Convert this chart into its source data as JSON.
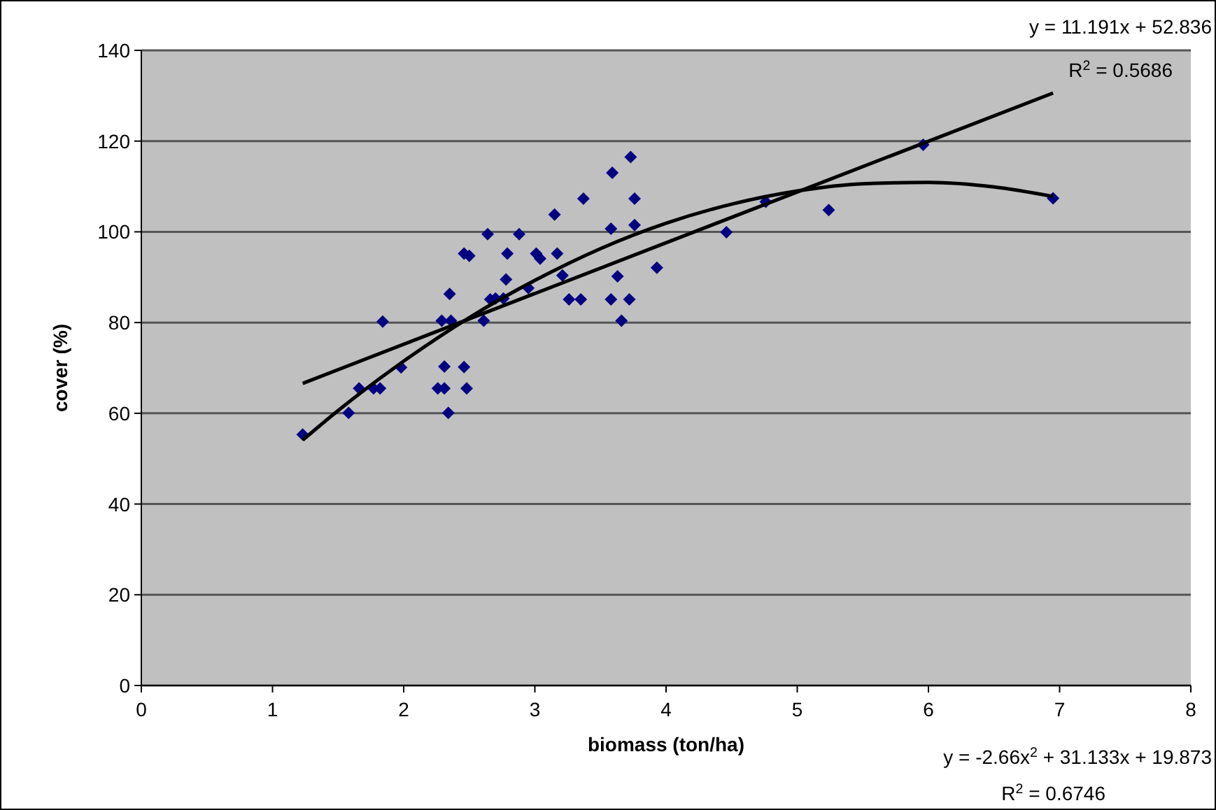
{
  "chart_data": {
    "type": "scatter",
    "xlabel": "biomass (ton/ha)",
    "ylabel": "cover (%)",
    "xlim": [
      0,
      8
    ],
    "ylim": [
      0,
      140
    ],
    "xticks": [
      0,
      1,
      2,
      3,
      4,
      5,
      6,
      7,
      8
    ],
    "yticks": [
      0,
      20,
      40,
      60,
      80,
      100,
      120,
      140
    ],
    "grid": "y",
    "marker": "diamond",
    "annotations": [
      "y = 11.191x + 52.836",
      "R$^{2}$ = 0.5686",
      "y = -2.66x$^{2}$ + 31.133x + 19.873",
      "R$^{2}$ = 0.6746"
    ],
    "series": [
      {
        "color": "#000080",
        "x": [
          1.23,
          1.58,
          1.66,
          1.77,
          1.82,
          1.84,
          1.98,
          2.26,
          2.31,
          2.29,
          2.31,
          2.34,
          2.35,
          2.36,
          2.46,
          2.48,
          2.46,
          2.5,
          2.61,
          2.64,
          2.66,
          2.7,
          2.76,
          2.78,
          2.79,
          2.88,
          2.95,
          3.01,
          3.04,
          3.15,
          3.17,
          3.21,
          3.26,
          3.35,
          3.37,
          3.58,
          3.58,
          3.59,
          3.63,
          3.66,
          3.72,
          3.73,
          3.76,
          3.76,
          3.93,
          4.46,
          4.76,
          5.24,
          5.96,
          6.95
        ],
        "values": [
          55.3,
          60.1,
          65.5,
          65.5,
          65.5,
          80.2,
          70.1,
          65.5,
          65.5,
          80.4,
          70.3,
          60.1,
          86.3,
          80.4,
          70.2,
          65.5,
          95.2,
          94.7,
          80.4,
          99.5,
          85.1,
          85.3,
          85.3,
          89.5,
          95.2,
          99.5,
          87.6,
          95.2,
          94.1,
          103.8,
          95.2,
          90.4,
          85.1,
          85.1,
          107.3,
          100.7,
          85.1,
          113,
          90.2,
          80.4,
          85.1,
          116.5,
          107.3,
          101.5,
          92.1,
          99.9,
          106.6,
          104.8,
          119.2,
          107.4
        ]
      },
      {
        "type": "line",
        "color": "#000000",
        "marker": "none",
        "x": [
          1.23,
          6.95
        ],
        "values": [
          66.6,
          130.6
        ]
      },
      {
        "type": "line",
        "color": "#000000",
        "marker": "none",
        "x": [
          1.23,
          1.5,
          2,
          2.5,
          3,
          3.5,
          4,
          4.5,
          5,
          5.5,
          6,
          6.5,
          6.95
        ],
        "values": [
          54.1,
          60.6,
          71.5,
          81.1,
          89.3,
          96.3,
          101.9,
          106.1,
          109,
          110.6,
          110.9,
          109.9,
          107.8
        ]
      }
    ]
  }
}
